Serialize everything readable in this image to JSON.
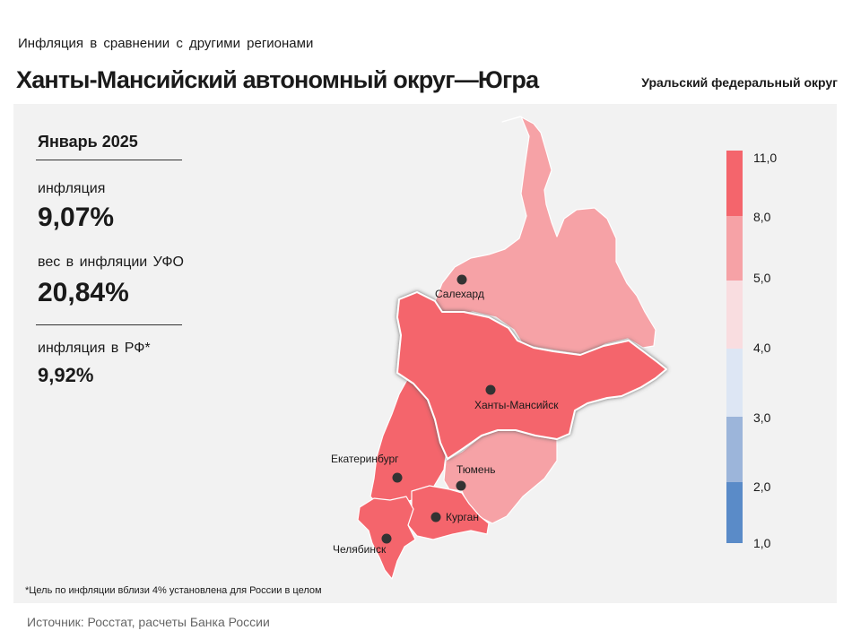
{
  "header": {
    "subtitle": "Инфляция в сравнении с другими регионами",
    "title": "Ханты-Мансийский автономный округ—Югра",
    "district": "Уральский федеральный округ"
  },
  "stats": {
    "period": "Январь 2025",
    "inflation_label": "инфляция",
    "inflation_value": "9,07%",
    "weight_label": "вес в инфляции УФО",
    "weight_value": "20,84%",
    "rf_label": "инфляция в РФ*",
    "rf_value": "9,92%"
  },
  "legend": {
    "ticks": [
      "11,0",
      "8,0",
      "5,0",
      "4,0",
      "3,0",
      "2,0",
      "1,0"
    ],
    "colors": [
      "#f4656c",
      "#f6a2a6",
      "#f9dde0",
      "#dde6f4",
      "#9cb5da",
      "#5a8bc8"
    ]
  },
  "regions": [
    {
      "name": "Ямало-Ненецкий автономный округ",
      "color": "#f6a2a6"
    },
    {
      "name": "Ханты-Мансийский автономный округ—Югра",
      "color": "#f4656c",
      "highlighted": true
    },
    {
      "name": "Свердловская область",
      "color": "#f4656c"
    },
    {
      "name": "Тюменская область",
      "color": "#f6a2a6"
    },
    {
      "name": "Курганская область",
      "color": "#f4656c"
    },
    {
      "name": "Челябинская область",
      "color": "#f4656c"
    }
  ],
  "cities": [
    "Салехард",
    "Ханты-Мансийск",
    "Екатеринбург",
    "Тюмень",
    "Курган",
    "Челябинск"
  ],
  "footnote": "*Цель по инфляции вблизи 4% установлена для России в целом",
  "source": "Источник: Росстат, расчеты Банка России"
}
